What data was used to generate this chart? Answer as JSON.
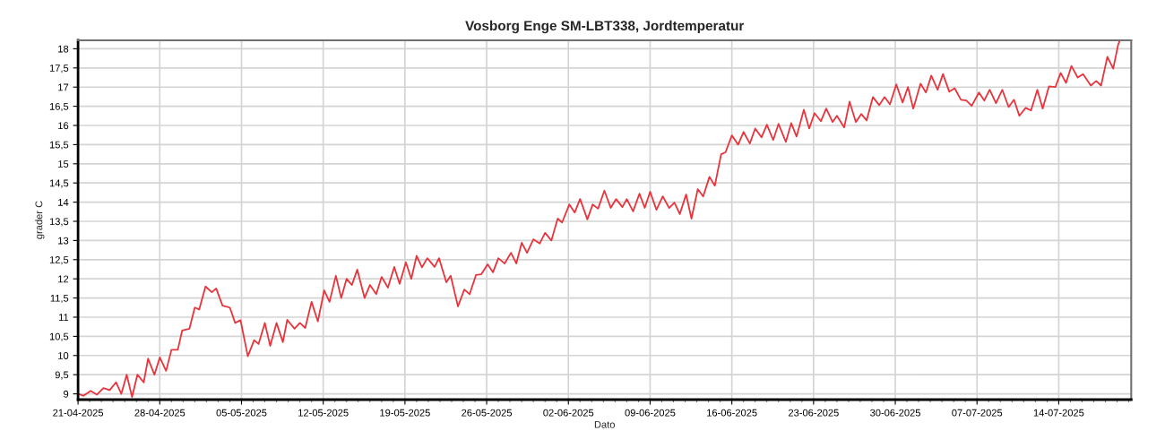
{
  "chart_data": {
    "type": "line",
    "title": "Vosborg Enge SM-LBT338, Jordtemperatur",
    "xlabel": "Dato",
    "ylabel": "grader C",
    "x": [
      "2025-04-21T00:00",
      "2025-04-21T11:00",
      "2025-04-22T02:00",
      "2025-04-22T15:00",
      "2025-04-23T04:00",
      "2025-04-23T17:00",
      "2025-04-24T06:00",
      "2025-04-24T17:00",
      "2025-04-25T04:00",
      "2025-04-25T15:00",
      "2025-04-26T02:00",
      "2025-04-26T15:00",
      "2025-04-27T00:00",
      "2025-04-27T13:00",
      "2025-04-28T00:00",
      "2025-04-28T13:00",
      "2025-04-29T00:00",
      "2025-04-29T13:00",
      "2025-04-29T22:00",
      "2025-04-30T13:00",
      "2025-05-01T00:00",
      "2025-05-01T09:00",
      "2025-05-01T22:00",
      "2025-05-02T11:00",
      "2025-05-02T20:00",
      "2025-05-03T09:00",
      "2025-05-04T00:00",
      "2025-05-04T11:00",
      "2025-05-04T22:00",
      "2025-05-05T13:00",
      "2025-05-06T02:00",
      "2025-05-06T11:00",
      "2025-05-07T00:00",
      "2025-05-07T11:00",
      "2025-05-08T00:00",
      "2025-05-08T13:00",
      "2025-05-08T22:00",
      "2025-05-09T13:00",
      "2025-05-10T00:00",
      "2025-05-10T11:00",
      "2025-05-11T00:00",
      "2025-05-11T13:00",
      "2025-05-12T02:00",
      "2025-05-12T13:00",
      "2025-05-13T02:00",
      "2025-05-13T13:00",
      "2025-05-14T00:00",
      "2025-05-14T11:00",
      "2025-05-14T22:00",
      "2025-05-15T13:00",
      "2025-05-16T00:00",
      "2025-05-16T13:00",
      "2025-05-17T00:00",
      "2025-05-17T13:00",
      "2025-05-18T02:00",
      "2025-05-18T13:00",
      "2025-05-19T02:00",
      "2025-05-19T13:00",
      "2025-05-20T00:00",
      "2025-05-20T11:00",
      "2025-05-20T22:00",
      "2025-05-21T13:00",
      "2025-05-21T22:00",
      "2025-05-22T13:00",
      "2025-05-22T22:00",
      "2025-05-23T13:00",
      "2025-05-24T02:00",
      "2025-05-24T13:00",
      "2025-05-25T02:00",
      "2025-05-25T13:00",
      "2025-05-26T02:00",
      "2025-05-26T13:00",
      "2025-05-27T00:00",
      "2025-05-27T13:00",
      "2025-05-28T02:00",
      "2025-05-28T13:00",
      "2025-05-29T00:00",
      "2025-05-29T11:00",
      "2025-05-30T00:00",
      "2025-05-30T13:00",
      "2025-05-31T00:00",
      "2025-05-31T13:00",
      "2025-06-01T02:00",
      "2025-06-01T11:00",
      "2025-06-02T02:00",
      "2025-06-02T13:00",
      "2025-06-03T00:00",
      "2025-06-03T15:00",
      "2025-06-04T02:00",
      "2025-06-04T13:00",
      "2025-06-05T02:00",
      "2025-06-05T15:00",
      "2025-06-06T02:00",
      "2025-06-06T15:00",
      "2025-06-07T00:00",
      "2025-06-07T13:00",
      "2025-06-08T02:00",
      "2025-06-08T13:00",
      "2025-06-09T00:00",
      "2025-06-09T13:00",
      "2025-06-10T02:00",
      "2025-06-10T15:00",
      "2025-06-11T02:00",
      "2025-06-11T13:00",
      "2025-06-12T02:00",
      "2025-06-12T13:00",
      "2025-06-13T02:00",
      "2025-06-13T13:00",
      "2025-06-14T02:00",
      "2025-06-14T13:00",
      "2025-06-15T02:00",
      "2025-06-15T11:00",
      "2025-06-16T00:00",
      "2025-06-16T13:00",
      "2025-06-17T00:00",
      "2025-06-17T13:00",
      "2025-06-18T00:00",
      "2025-06-18T13:00",
      "2025-06-19T00:00",
      "2025-06-19T13:00",
      "2025-06-20T00:00",
      "2025-06-20T15:00",
      "2025-06-21T02:00",
      "2025-06-21T13:00",
      "2025-06-22T04:00",
      "2025-06-22T15:00",
      "2025-06-23T02:00",
      "2025-06-23T15:00",
      "2025-06-24T02:00",
      "2025-06-24T15:00",
      "2025-06-25T00:00",
      "2025-06-25T15:00",
      "2025-06-26T02:00",
      "2025-06-26T15:00",
      "2025-06-27T02:00",
      "2025-06-27T13:00",
      "2025-06-28T02:00",
      "2025-06-28T15:00",
      "2025-06-29T02:00",
      "2025-06-29T13:00",
      "2025-06-30T02:00",
      "2025-06-30T15:00",
      "2025-07-01T02:00",
      "2025-07-01T13:00",
      "2025-07-02T04:00",
      "2025-07-02T15:00",
      "2025-07-03T02:00",
      "2025-07-03T15:00",
      "2025-07-04T02:00",
      "2025-07-04T15:00",
      "2025-07-05T02:00",
      "2025-07-05T15:00",
      "2025-07-06T02:00",
      "2025-07-06T13:00",
      "2025-07-07T04:00",
      "2025-07-07T15:00",
      "2025-07-08T02:00",
      "2025-07-08T15:00",
      "2025-07-09T04:00",
      "2025-07-09T17:00",
      "2025-07-10T04:00",
      "2025-07-10T15:00",
      "2025-07-11T04:00",
      "2025-07-11T15:00",
      "2025-07-12T04:00",
      "2025-07-12T15:00",
      "2025-07-13T04:00",
      "2025-07-13T17:00",
      "2025-07-14T04:00",
      "2025-07-14T15:00",
      "2025-07-15T02:00",
      "2025-07-15T15:00",
      "2025-07-16T02:00",
      "2025-07-16T18:00",
      "2025-07-17T05:00",
      "2025-07-17T15:00",
      "2025-07-18T04:00",
      "2025-07-18T16:00",
      "2025-07-19T02:00",
      "2025-07-19T05:00"
    ],
    "series": [
      {
        "color": "#e8343c",
        "values": [
          9.0,
          8.95,
          9.08,
          8.98,
          9.15,
          9.1,
          9.3,
          9.0,
          9.5,
          8.92,
          9.5,
          9.3,
          9.92,
          9.5,
          9.95,
          9.6,
          10.15,
          10.15,
          10.65,
          10.7,
          11.25,
          11.2,
          11.8,
          11.65,
          11.75,
          11.3,
          11.25,
          10.85,
          10.92,
          9.98,
          10.4,
          10.3,
          10.85,
          10.25,
          10.85,
          10.35,
          10.93,
          10.7,
          10.85,
          10.72,
          11.4,
          10.89,
          11.7,
          11.4,
          12.08,
          11.5,
          12.0,
          11.84,
          12.24,
          11.5,
          11.84,
          11.6,
          12.05,
          11.77,
          12.31,
          11.87,
          12.43,
          12.0,
          12.6,
          12.3,
          12.54,
          12.31,
          12.54,
          11.91,
          12.08,
          11.28,
          11.72,
          11.6,
          12.1,
          12.12,
          12.38,
          12.17,
          12.54,
          12.4,
          12.68,
          12.4,
          12.94,
          12.68,
          13.03,
          12.92,
          13.2,
          13.0,
          13.57,
          13.47,
          13.94,
          13.73,
          14.08,
          13.55,
          13.94,
          13.83,
          14.3,
          13.85,
          14.08,
          13.87,
          14.08,
          13.76,
          14.22,
          13.85,
          14.27,
          13.8,
          14.15,
          13.85,
          13.99,
          13.69,
          14.2,
          13.57,
          14.34,
          14.15,
          14.66,
          14.43,
          15.25,
          15.3,
          15.74,
          15.5,
          15.83,
          15.53,
          15.92,
          15.69,
          16.02,
          15.62,
          16.04,
          15.57,
          16.06,
          15.71,
          16.41,
          15.92,
          16.32,
          16.11,
          16.44,
          16.09,
          16.25,
          15.95,
          16.62,
          16.09,
          16.3,
          16.13,
          16.74,
          16.53,
          16.74,
          16.55,
          17.07,
          16.6,
          17.0,
          16.44,
          17.09,
          16.86,
          17.3,
          16.93,
          17.34,
          16.88,
          16.97,
          16.67,
          16.65,
          16.51,
          16.86,
          16.65,
          16.93,
          16.58,
          16.93,
          16.48,
          16.67,
          16.25,
          16.46,
          16.39,
          16.93,
          16.44,
          17.02,
          17.0,
          17.37,
          17.11,
          17.55,
          17.25,
          17.34,
          17.04,
          17.16,
          17.04,
          17.79,
          17.48,
          18.1,
          18.2
        ]
      }
    ],
    "xlim": [
      "2025-04-21",
      "2025-07-20T05:00"
    ],
    "xticks": [
      {
        "value": "2025-04-21",
        "label": "21-04-2025"
      },
      {
        "value": "2025-04-28",
        "label": "28-04-2025"
      },
      {
        "value": "2025-05-05",
        "label": "05-05-2025"
      },
      {
        "value": "2025-05-12",
        "label": "12-05-2025"
      },
      {
        "value": "2025-05-19",
        "label": "19-05-2025"
      },
      {
        "value": "2025-05-26",
        "label": "26-05-2025"
      },
      {
        "value": "2025-06-02",
        "label": "02-06-2025"
      },
      {
        "value": "2025-06-09",
        "label": "09-06-2025"
      },
      {
        "value": "2025-06-16",
        "label": "16-06-2025"
      },
      {
        "value": "2025-06-23",
        "label": "23-06-2025"
      },
      {
        "value": "2025-06-30",
        "label": "30-06-2025"
      },
      {
        "value": "2025-07-07",
        "label": "07-07-2025"
      },
      {
        "value": "2025-07-14",
        "label": "14-07-2025"
      }
    ],
    "ylim": [
      8.85,
      18.22
    ],
    "yticks": [
      9,
      {
        "value": 9.5,
        "label": "9,5"
      },
      10,
      {
        "value": 10.5,
        "label": "10,5"
      },
      11,
      {
        "value": 11.5,
        "label": "11,5"
      },
      12,
      {
        "value": 12.5,
        "label": "12,5"
      },
      13,
      {
        "value": 13.5,
        "label": "13,5"
      },
      14,
      {
        "value": 14.5,
        "label": "14,5"
      },
      15,
      {
        "value": 15.5,
        "label": "15,5"
      },
      16,
      {
        "value": 16.5,
        "label": "16,5"
      },
      17,
      {
        "value": 17.5,
        "label": "17,5"
      },
      18
    ],
    "grid": true,
    "marker": "none",
    "line_style": "solid"
  }
}
